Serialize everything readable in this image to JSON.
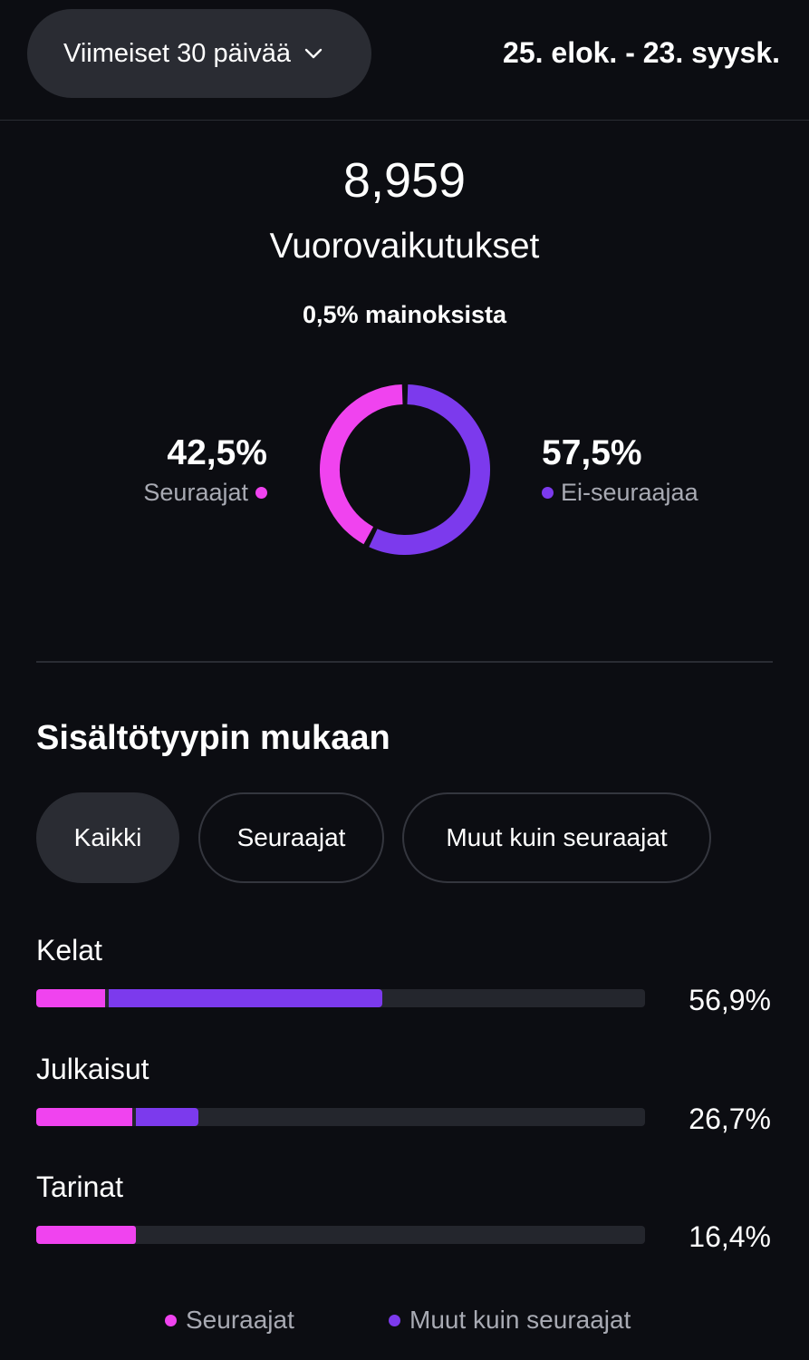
{
  "header": {
    "range_label": "Viimeiset 30 päivää",
    "date_range": "25. elok. - 23. syysk."
  },
  "summary": {
    "total": "8,959",
    "total_label": "Vuorovaikutukset",
    "ads_note": "0,5% mainoksista"
  },
  "audience_split": {
    "followers": {
      "percent_text": "42,5%",
      "label": "Seuraajat",
      "value": 42.5,
      "color": "#f043ef"
    },
    "non_followers": {
      "percent_text": "57,5%",
      "label": "Ei-seuraajaa",
      "value": 57.5,
      "color": "#7c3aed"
    }
  },
  "section": {
    "title": "Sisältötyypin mukaan",
    "filters": [
      "Kaikki",
      "Seuraajat",
      "Muut kuin seuraajat"
    ],
    "active_filter": "Kaikki"
  },
  "content_types": [
    {
      "label": "Kelat",
      "percent_text": "56,9%",
      "total": 56.9,
      "followers_share": 11.3
    },
    {
      "label": "Julkaisut",
      "percent_text": "26,7%",
      "total": 26.7,
      "followers_share": 15.8
    },
    {
      "label": "Tarinat",
      "percent_text": "16,4%",
      "total": 16.4,
      "followers_share": 16.4
    }
  ],
  "legend": {
    "followers": "Seuraajat",
    "non_followers": "Muut kuin seuraajat"
  }
}
